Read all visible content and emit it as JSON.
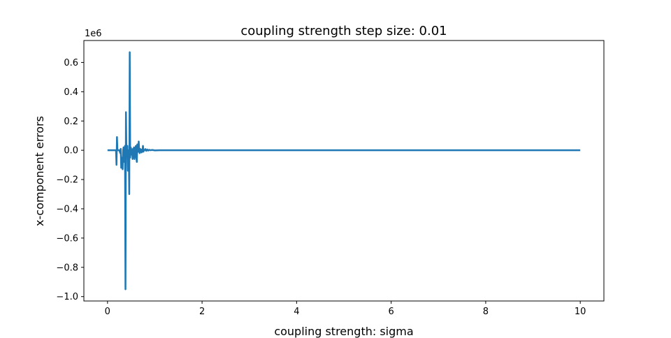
{
  "chart_data": {
    "type": "line",
    "title": "coupling strength step size: 0.01",
    "xlabel": "coupling strength: sigma",
    "ylabel": "x-component errors",
    "offset_label": "1e6",
    "xlim": [
      -0.5,
      10.5
    ],
    "ylim": [
      -1.03,
      0.75
    ],
    "x_ticks": [
      0,
      2,
      4,
      6,
      8,
      10
    ],
    "x_tick_labels": [
      "0",
      "2",
      "4",
      "6",
      "8",
      "10"
    ],
    "y_ticks": [
      -1.0,
      -0.8,
      -0.6,
      -0.4,
      -0.2,
      0.0,
      0.2,
      0.4,
      0.6
    ],
    "y_tick_labels": [
      "−1.0",
      "−0.8",
      "−0.6",
      "−0.4",
      "−0.2",
      "0.0",
      "0.2",
      "0.4",
      "0.6"
    ],
    "grid": false,
    "series": [
      {
        "color": "#1f77b4",
        "x": [
          0,
          0.18,
          0.19,
          0.2,
          0.21,
          0.25,
          0.27,
          0.28,
          0.29,
          0.3,
          0.31,
          0.32,
          0.33,
          0.34,
          0.35,
          0.36,
          0.37,
          0.38,
          0.39,
          0.4,
          0.41,
          0.42,
          0.43,
          0.44,
          0.45,
          0.46,
          0.47,
          0.48,
          0.49,
          0.5,
          0.51,
          0.52,
          0.53,
          0.54,
          0.55,
          0.56,
          0.57,
          0.58,
          0.59,
          0.6,
          0.61,
          0.62,
          0.63,
          0.64,
          0.65,
          0.66,
          0.67,
          0.68,
          0.69,
          0.7,
          0.71,
          0.72,
          0.73,
          0.74,
          0.75,
          0.76,
          0.77,
          0.78,
          0.8,
          0.82,
          0.84,
          0.86,
          0.88,
          0.9,
          0.95,
          1.0,
          1.1,
          1.2,
          1.3,
          1.5,
          2.0,
          3.0,
          4.0,
          5.0,
          6.0,
          7.0,
          8.0,
          9.0,
          10.0
        ],
        "y": [
          0.0,
          0.0,
          -0.1,
          0.09,
          0.0,
          0.0,
          -0.02,
          0.01,
          -0.12,
          -0.05,
          -0.09,
          -0.13,
          0.0,
          0.02,
          -0.08,
          -0.02,
          0.03,
          -0.95,
          0.26,
          -0.02,
          0.01,
          0.03,
          -0.14,
          -0.1,
          0.0,
          -0.3,
          0.67,
          -0.05,
          0.02,
          0.01,
          -0.03,
          0.0,
          -0.06,
          0.01,
          -0.03,
          0.02,
          -0.06,
          -0.02,
          0.01,
          0.03,
          -0.05,
          -0.08,
          0.04,
          0.0,
          -0.01,
          0.06,
          0.0,
          -0.02,
          0.01,
          -0.01,
          0.005,
          -0.015,
          -0.01,
          0.0,
          0.03,
          -0.01,
          0.0,
          0.0,
          0.008,
          -0.004,
          0.005,
          -0.002,
          0.003,
          0.0,
          0.002,
          -0.001,
          0.0,
          0.0,
          0.0,
          0.0,
          0.0,
          0.0,
          0.0,
          0.0,
          0.0,
          0.0,
          0.0,
          0.0,
          0.0
        ]
      }
    ]
  }
}
